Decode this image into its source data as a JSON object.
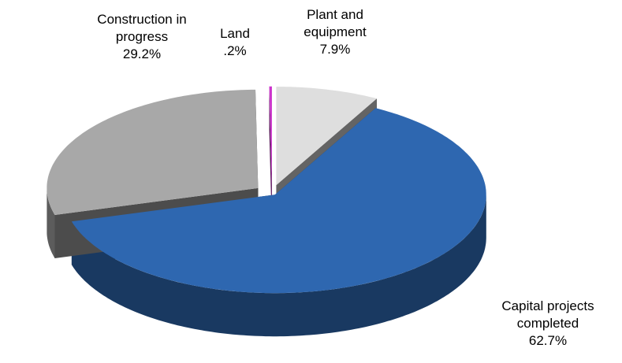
{
  "chart_data": {
    "type": "pie",
    "categories": [
      "Plant and equipment",
      "Capital projects completed",
      "Construction in progress",
      "Land"
    ],
    "values": [
      7.9,
      62.7,
      29.2,
      0.2
    ],
    "value_labels": [
      "7.9%",
      "62.7%",
      "29.2%",
      ".2%"
    ],
    "colors": [
      "#dedede",
      "#2e67b0",
      "#a8a8a8",
      "#cc33cc"
    ]
  }
}
